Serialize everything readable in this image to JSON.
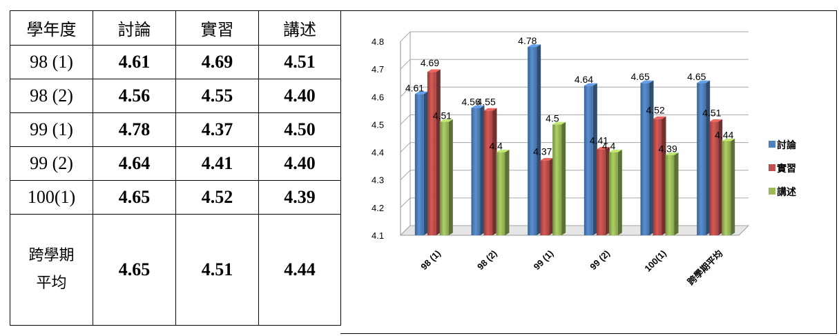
{
  "table": {
    "headers": [
      "學年度",
      "討論",
      "實習",
      "講述"
    ],
    "rows": [
      {
        "label": "98 (1)",
        "values": [
          "4.61",
          "4.69",
          "4.51"
        ]
      },
      {
        "label": "98 (2)",
        "values": [
          "4.56",
          "4.55",
          "4.40"
        ]
      },
      {
        "label": "99 (1)",
        "values": [
          "4.78",
          "4.37",
          "4.50"
        ]
      },
      {
        "label": "99 (2)",
        "values": [
          "4.64",
          "4.41",
          "4.40"
        ]
      },
      {
        "label": "100(1)",
        "values": [
          "4.65",
          "4.52",
          "4.39"
        ]
      }
    ],
    "average": {
      "label_line1": "跨學期",
      "label_line2": "平均",
      "values": [
        "4.65",
        "4.51",
        "4.44"
      ]
    }
  },
  "chart_data": {
    "type": "bar",
    "categories": [
      "98 (1)",
      "98 (2)",
      "99 (1)",
      "99 (2)",
      "100(1)",
      "跨學期平均"
    ],
    "series": [
      {
        "name": "討論",
        "values": [
          4.61,
          4.56,
          4.78,
          4.64,
          4.65,
          4.65
        ],
        "labels": [
          "4.61",
          "4.56",
          "4.78",
          "4.64",
          "4.65",
          "4.65"
        ],
        "color": "#4F81BD"
      },
      {
        "name": "實習",
        "values": [
          4.69,
          4.55,
          4.37,
          4.41,
          4.52,
          4.51
        ],
        "labels": [
          "4.69",
          "4.55",
          "4.37",
          "4.41",
          "4.52",
          "4.51"
        ],
        "color": "#C0504D"
      },
      {
        "name": "講述",
        "values": [
          4.51,
          4.4,
          4.5,
          4.4,
          4.39,
          4.44
        ],
        "labels": [
          "4.51",
          "4.4",
          "4.5",
          "4.4",
          "4.39",
          "4.44"
        ],
        "color": "#9BBB59"
      }
    ],
    "ylim": [
      4.1,
      4.8
    ],
    "yticks": [
      "4.1",
      "4.2",
      "4.3",
      "4.4",
      "4.5",
      "4.6",
      "4.7",
      "4.8"
    ],
    "grid": true,
    "legend": "right"
  }
}
